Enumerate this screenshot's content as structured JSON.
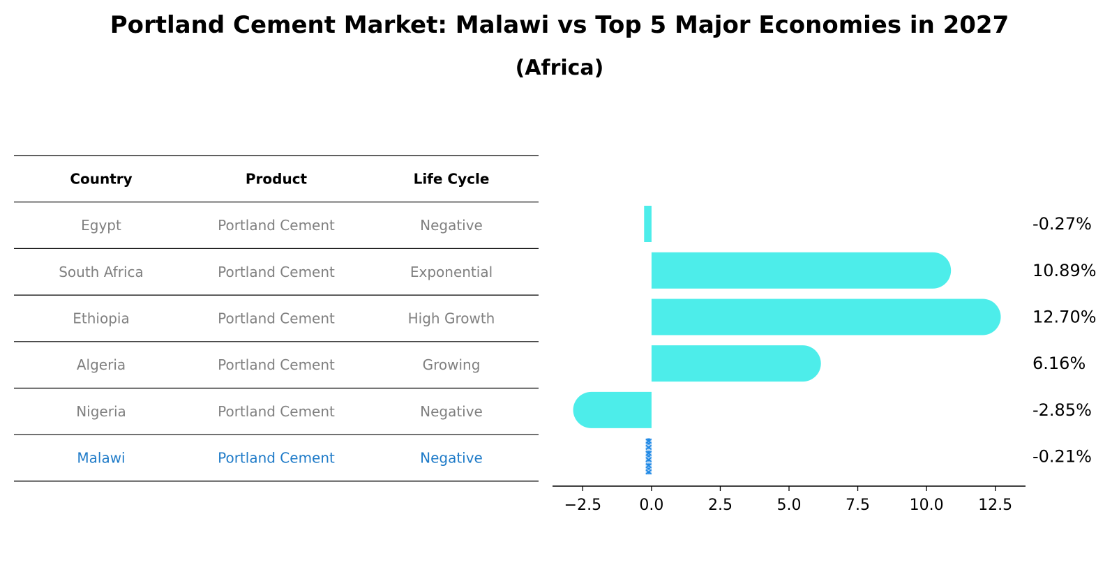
{
  "title": "Portland Cement Market: Malawi vs Top 5 Major Economies in 2027",
  "subtitle": "(Africa)",
  "table": {
    "headers": [
      "Country",
      "Product",
      "Life Cycle"
    ],
    "rows": [
      {
        "country": "Egypt",
        "product": "Portland Cement",
        "life_cycle": "Negative",
        "highlight": false
      },
      {
        "country": "South Africa",
        "product": "Portland Cement",
        "life_cycle": "Exponential",
        "highlight": false
      },
      {
        "country": "Ethiopia",
        "product": "Portland Cement",
        "life_cycle": "High Growth",
        "highlight": false
      },
      {
        "country": "Algeria",
        "product": "Portland Cement",
        "life_cycle": "Growing",
        "highlight": false
      },
      {
        "country": "Nigeria",
        "product": "Portland Cement",
        "life_cycle": "Negative",
        "highlight": false
      },
      {
        "country": "Malawi",
        "product": "Portland Cement",
        "life_cycle": "Negative",
        "highlight": true
      }
    ]
  },
  "chart_data": {
    "type": "bar",
    "orientation": "horizontal",
    "categories": [
      "Egypt",
      "South Africa",
      "Ethiopia",
      "Algeria",
      "Nigeria",
      "Malawi"
    ],
    "values": [
      -0.27,
      10.89,
      12.7,
      6.16,
      -2.85,
      -0.21
    ],
    "value_labels": [
      "-0.27%",
      "10.89%",
      "12.70%",
      "6.16%",
      "-2.85%",
      "-0.21%"
    ],
    "xlim": [
      -3.6,
      13.6
    ],
    "xticks": [
      -2.5,
      0.0,
      2.5,
      5.0,
      7.5,
      10.0,
      12.5
    ],
    "xtick_labels": [
      "−2.5",
      "0.0",
      "2.5",
      "5.0",
      "7.5",
      "10.0",
      "12.5"
    ],
    "highlight_category": "Malawi"
  },
  "colors": {
    "bar": "#4DEDEA",
    "highlight": "#1E88E5",
    "muted_text": "#808080",
    "highlight_text": "#1F7BC8",
    "line": "#000000"
  }
}
